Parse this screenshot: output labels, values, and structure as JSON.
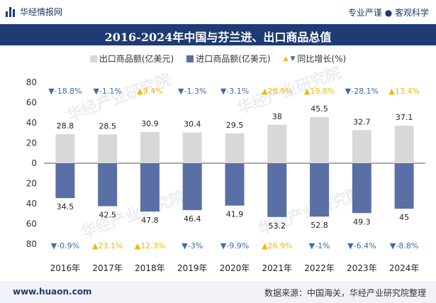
{
  "header": {
    "brand": "华经情报网",
    "slogan": "专业严谨 ● 客观科学"
  },
  "chart_data": {
    "type": "bar",
    "title": "2016-2024年中国与芬兰进、出口商品总值",
    "categories": [
      "2016年",
      "2017年",
      "2018年",
      "2019年",
      "2020年",
      "2021年",
      "2022年",
      "2023年",
      "2024年"
    ],
    "series": [
      {
        "name": "出口商品额(亿美元)",
        "color": "#d8d8d8",
        "values": [
          28.8,
          28.5,
          30.9,
          30.4,
          29.5,
          38,
          45.5,
          32.7,
          37.1
        ]
      },
      {
        "name": "进口商品额(亿美元)",
        "color": "#5a6fa6",
        "values": [
          34.5,
          42.5,
          47.8,
          46.4,
          41.9,
          53.2,
          52.8,
          49.3,
          45
        ]
      }
    ],
    "growth_legend": "同比增长(%)",
    "export_growth": [
      "-18.8%",
      "-1.1%",
      "8.4%",
      "-1.3%",
      "-3.1%",
      "28.9%",
      "19.8%",
      "-28.1%",
      "13.4%"
    ],
    "import_growth": [
      "-0.9%",
      "23.1%",
      "12.3%",
      "-3%",
      "-9.9%",
      "26.9%",
      "-1%",
      "-6.4%",
      "-8.8%"
    ],
    "y_ticks": [
      "80",
      "60",
      "40",
      "20",
      "0",
      "20",
      "40",
      "60",
      "80"
    ],
    "ylim": [
      -80,
      80
    ],
    "colors": {
      "up": "#f5b800",
      "down": "#3a6bb0"
    }
  },
  "footer": {
    "site": "www.huaon.com",
    "source": "数据来源：中国海关，华经产业研究院整理"
  }
}
